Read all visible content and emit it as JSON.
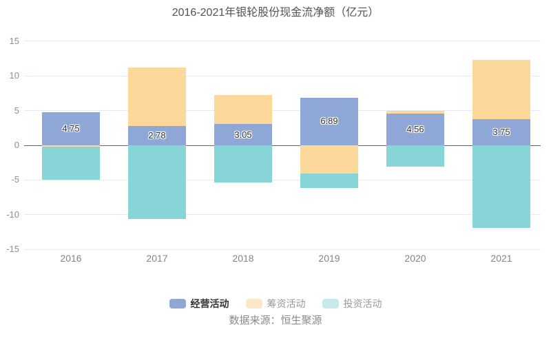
{
  "title": "2016-2021年银轮股份现金流净额（亿元）",
  "source": "数据来源：恒生聚源",
  "chart_data": {
    "type": "bar",
    "stacked": true,
    "title": "2016-2021年银轮股份现金流净额（亿元）",
    "unit": "亿元",
    "categories": [
      "2016",
      "2017",
      "2018",
      "2019",
      "2020",
      "2021"
    ],
    "series": [
      {
        "name": "经营活动",
        "color": "#8ea7d6",
        "values": [
          4.75,
          2.78,
          3.05,
          6.89,
          4.56,
          3.75
        ],
        "show_labels": true,
        "labels": [
          "4.75",
          "2.78",
          "3.05",
          "6.89",
          "4.56",
          "3.75"
        ],
        "legend_marker_color": "#8ea7d6",
        "legend_text_color": "#333333",
        "legend_emphasized": true
      },
      {
        "name": "筹资活动",
        "color": "#fdd89b",
        "values": [
          -0.2,
          8.4,
          4.15,
          -4.1,
          0.4,
          8.6
        ],
        "show_labels": false,
        "legend_marker_color": "#fbe8c8",
        "legend_text_color": "#999999",
        "legend_emphasized": false
      },
      {
        "name": "投资活动",
        "color": "#87d5d6",
        "values": [
          -4.8,
          -10.6,
          -5.4,
          -2.1,
          -3.1,
          -11.9
        ],
        "show_labels": false,
        "legend_marker_color": "#c6e9e9",
        "legend_text_color": "#999999",
        "legend_emphasized": false
      }
    ],
    "ylim": [
      -15,
      15
    ],
    "yticks": [
      15,
      10,
      5,
      0,
      -5,
      -10,
      -15
    ],
    "grid": true,
    "legend_position": "bottom",
    "legend_labels": [
      "经营活动",
      "筹资活动",
      "投资活动"
    ]
  }
}
